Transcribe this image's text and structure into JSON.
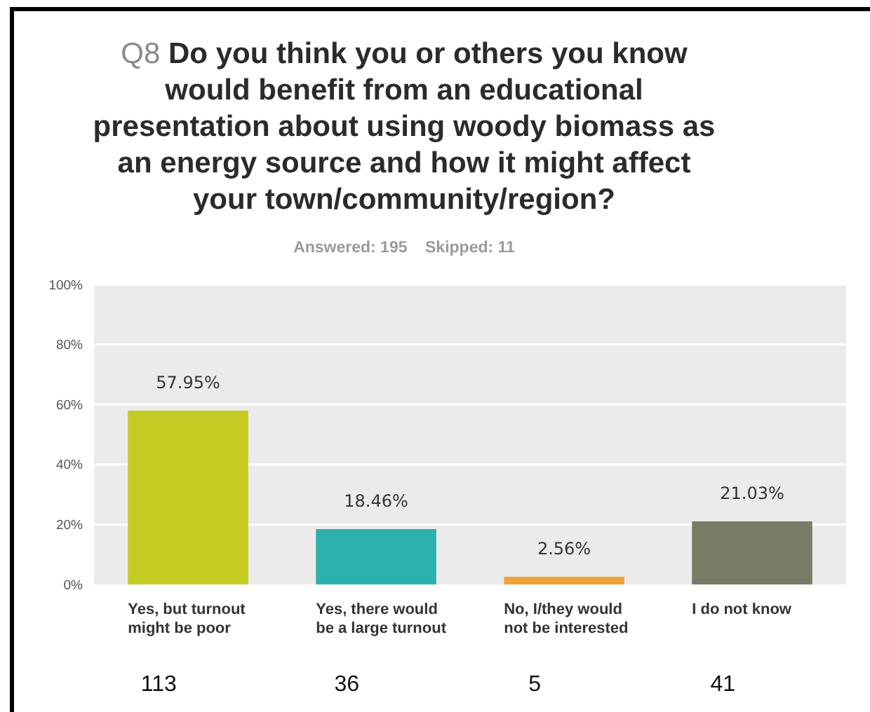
{
  "chart_data": {
    "type": "bar",
    "title": "Q8 Do you think you or others you know would benefit from an educational presentation about using woody biomass as an energy source and how it might affect your town/community/region?",
    "subtitle": "Answered: 195    Skipped: 11",
    "categories": [
      "Yes, but turnout might be poor",
      "Yes, there would be a large turnout",
      "No, I/they would not be interested",
      "I do not know"
    ],
    "values": [
      57.95,
      18.46,
      2.56,
      21.03
    ],
    "colors": [
      "#c4cb22",
      "#2db1ad",
      "#eea43a",
      "#797b66"
    ],
    "value_labels": [
      "57.95%",
      "18.46%",
      "2.56%",
      "21.03%"
    ],
    "ylim": [
      0,
      100
    ],
    "yticks": [
      {
        "value": 0,
        "label": "0%"
      },
      {
        "value": 20,
        "label": "20%"
      },
      {
        "value": 40,
        "label": "40%"
      },
      {
        "value": 60,
        "label": "60%"
      },
      {
        "value": 80,
        "label": "80%"
      },
      {
        "value": 100,
        "label": "100%"
      }
    ],
    "grid": true,
    "annotations": [
      "113",
      "36",
      "5",
      "41"
    ]
  }
}
